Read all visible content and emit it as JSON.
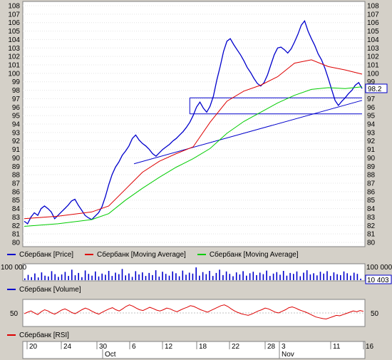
{
  "chart_data": [
    {
      "type": "line",
      "title": "",
      "ylim": [
        80,
        108
      ],
      "yticks": [
        80,
        81,
        82,
        83,
        84,
        85,
        86,
        87,
        88,
        89,
        90,
        91,
        92,
        93,
        94,
        95,
        96,
        97,
        98,
        99,
        100,
        101,
        102,
        103,
        104,
        105,
        106,
        107,
        108
      ],
      "last_value_label": "98.2",
      "grid": true,
      "series": [
        {
          "name": "Сбербанк [Price]",
          "color": "#0000cc",
          "x": [
            0,
            2,
            4,
            6,
            8,
            10,
            12,
            14,
            16,
            18,
            20,
            22,
            24,
            26,
            28,
            30,
            32,
            34,
            36,
            38,
            40,
            42,
            44,
            46,
            48,
            50,
            52,
            54,
            56,
            58,
            60,
            62,
            64,
            66,
            68,
            70,
            72,
            74,
            76,
            78,
            80,
            82,
            84,
            86,
            88,
            90,
            92,
            94,
            96,
            98,
            100,
            102,
            104,
            106,
            108,
            110,
            112,
            114,
            116,
            118,
            120,
            122,
            124,
            126,
            128,
            130,
            132,
            134,
            136,
            138,
            140,
            142,
            144,
            146,
            148,
            150,
            152,
            154,
            156,
            158,
            160,
            162,
            164,
            166,
            168,
            170,
            172,
            174,
            176,
            178,
            180,
            182,
            184,
            186,
            188,
            190,
            192,
            194,
            196,
            198,
            200
          ],
          "y": [
            82.5,
            82.2,
            83,
            83.5,
            83.2,
            84,
            84.3,
            84,
            83.6,
            82.8,
            83.2,
            83.6,
            84,
            84.4,
            84.9,
            85.1,
            84.4,
            83.8,
            83.2,
            82.9,
            82.7,
            83.1,
            83.5,
            84.2,
            85.4,
            86.8,
            88,
            88.9,
            89.5,
            90.3,
            90.8,
            91.4,
            92.3,
            92.7,
            92.1,
            91.7,
            91.4,
            91,
            90.5,
            90.2,
            90.6,
            91,
            91.3,
            91.6,
            92,
            92.3,
            92.7,
            93.1,
            93.6,
            94.2,
            95,
            96,
            96.6,
            95.9,
            95.4,
            96.1,
            97.3,
            99.2,
            100.8,
            102.6,
            103.8,
            104.1,
            103.4,
            102.8,
            102.2,
            101.5,
            100.7,
            100.1,
            99.4,
            98.8,
            98.5,
            98.9,
            99.8,
            101,
            102.2,
            103,
            103.1,
            102.8,
            102.4,
            102.9,
            103.7,
            104.6,
            105.7,
            106.2,
            105,
            104.1,
            103.3,
            102.3,
            101.6,
            100.6,
            99.4,
            98.1,
            96.8,
            96.2,
            96.7,
            97.1,
            97.6,
            98,
            98.6,
            98.9,
            98.2
          ]
        },
        {
          "name": "Сбербанк [Moving Average]",
          "color": "#dd0000",
          "x": [
            0,
            20,
            40,
            50,
            60,
            70,
            80,
            90,
            100,
            110,
            120,
            130,
            140,
            150,
            160,
            170,
            180,
            190,
            200
          ],
          "y": [
            82.8,
            83.1,
            83.6,
            84.3,
            86.3,
            88.3,
            89.6,
            90.5,
            91.3,
            94.2,
            96.7,
            97.9,
            98.6,
            99.6,
            101.2,
            101.6,
            100.8,
            100.4,
            99.9
          ]
        },
        {
          "name": "Сбербанк [Moving Average]",
          "color": "#00cc00",
          "x": [
            0,
            20,
            40,
            50,
            60,
            70,
            80,
            90,
            100,
            110,
            120,
            130,
            140,
            150,
            160,
            170,
            180,
            190,
            200
          ],
          "y": [
            81.9,
            82.2,
            82.7,
            83.4,
            85,
            86.4,
            87.7,
            88.9,
            89.9,
            91.1,
            92.9,
            94.3,
            95.4,
            96.5,
            97.4,
            98.1,
            98.3,
            98.2,
            98.4
          ]
        }
      ],
      "trendlines": [
        {
          "color": "#0000cc",
          "x": [
            65,
            200
          ],
          "y": [
            89.3,
            96.8
          ]
        },
        {
          "color": "#0000cc",
          "x": [
            98,
            200
          ],
          "y": [
            97.1,
            97.1
          ]
        },
        {
          "color": "#0000cc",
          "x": [
            98,
            200
          ],
          "y": [
            95.2,
            95.2
          ]
        },
        {
          "color": "#0000cc",
          "x": [
            98,
            98
          ],
          "y": [
            95.2,
            97.1
          ]
        }
      ]
    },
    {
      "type": "bar",
      "ylim": [
        0,
        100000
      ],
      "ytick_label": "100 000",
      "last_value_label": "10 403",
      "series": [
        {
          "name": "Сбербанк [Volume]",
          "color": "#0000cc"
        }
      ],
      "values": [
        12,
        35,
        20,
        45,
        18,
        52,
        30,
        25,
        60,
        40,
        22,
        38,
        55,
        28,
        70,
        33,
        48,
        20,
        65,
        42,
        30,
        58,
        25,
        44,
        36,
        62,
        28,
        50,
        40,
        75,
        32,
        45,
        22,
        60,
        38,
        52,
        28,
        48,
        34,
        66,
        24,
        56,
        42,
        30,
        58,
        46,
        26,
        64,
        36,
        50,
        44,
        85,
        30,
        54,
        40,
        62,
        28,
        48,
        70,
        34,
        58,
        42,
        26,
        52,
        38,
        60,
        30,
        46,
        56,
        34,
        50,
        40,
        64,
        28,
        44,
        54,
        36,
        62,
        30,
        48,
        42,
        58,
        26,
        50,
        66,
        38,
        46,
        32,
        56,
        44,
        60,
        28,
        52,
        40,
        34,
        58,
        46,
        30,
        50,
        42,
        10
      ]
    },
    {
      "type": "line",
      "ylim": [
        20,
        80
      ],
      "ytick_label": "50",
      "series": [
        {
          "name": "Сбербанк [RSI]",
          "color": "#dd0000",
          "y": [
            48,
            52,
            55,
            50,
            46,
            53,
            58,
            55,
            50,
            47,
            52,
            57,
            60,
            56,
            51,
            48,
            53,
            58,
            62,
            59,
            54,
            50,
            47,
            52,
            56,
            60,
            63,
            58,
            55,
            60,
            66,
            70,
            67,
            62,
            58,
            56,
            60,
            64,
            61,
            57,
            55,
            58,
            62,
            60,
            56,
            53,
            57,
            61,
            64,
            68,
            66,
            62,
            58,
            55,
            52,
            56,
            60,
            64,
            68,
            70,
            66,
            60,
            55,
            51,
            48,
            46,
            44,
            47,
            51,
            55,
            58,
            62,
            60,
            56,
            52,
            50,
            54,
            58,
            63,
            65,
            62,
            58,
            55,
            52,
            48,
            44,
            40,
            38,
            36,
            35,
            38,
            41,
            44,
            43,
            46,
            49,
            52,
            55,
            53,
            56,
            54
          ]
        }
      ]
    }
  ],
  "x_axis": {
    "day_labels": [
      "20",
      "24",
      "30",
      "6",
      "12",
      "18",
      "22",
      "28",
      "3",
      "11",
      "16"
    ],
    "month_labels": [
      "Oct",
      "Nov"
    ]
  }
}
